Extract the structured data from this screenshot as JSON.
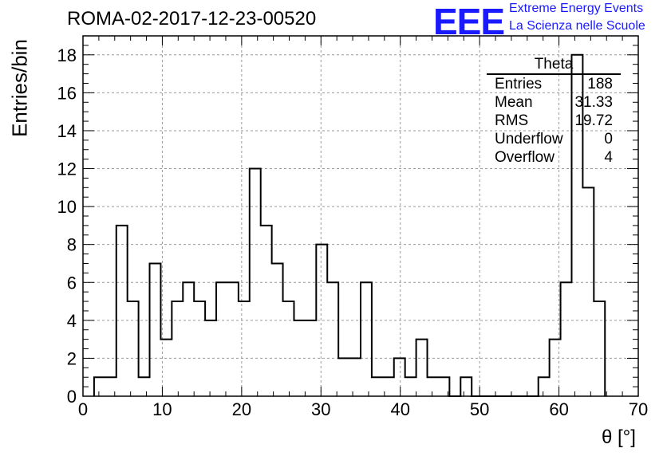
{
  "title": "ROMA-02-2017-12-23-00520",
  "logo": {
    "mark": "EEE",
    "line1": "Extreme Energy Events",
    "line2": "La Scienza nelle Scuole",
    "color": "#1a1aff"
  },
  "stats": {
    "title": "Theta",
    "rows": [
      {
        "label": "Entries",
        "value": "188"
      },
      {
        "label": "Mean",
        "value": "31.33"
      },
      {
        "label": "RMS",
        "value": "19.72"
      },
      {
        "label": "Underflow",
        "value": "0"
      },
      {
        "label": "Overflow",
        "value": "4"
      }
    ]
  },
  "chart_data": {
    "type": "bar",
    "title": "ROMA-02-2017-12-23-00520",
    "xlabel": "θ [°]",
    "ylabel": "Entries/bin",
    "xlim": [
      0,
      70
    ],
    "ylim": [
      0,
      19
    ],
    "xticks": [
      0,
      10,
      20,
      30,
      40,
      50,
      60,
      70
    ],
    "yticks": [
      0,
      2,
      4,
      6,
      8,
      10,
      12,
      14,
      16,
      18
    ],
    "grid": true,
    "bin_width": 1.4,
    "bin_lows": [
      1.4,
      2.8,
      4.2,
      5.6,
      7.0,
      8.4,
      9.8,
      11.2,
      12.6,
      14.0,
      15.4,
      16.8,
      18.2,
      19.6,
      21.0,
      22.4,
      23.8,
      25.2,
      26.6,
      28.0,
      29.4,
      30.8,
      32.2,
      33.6,
      35.0,
      36.4,
      37.8,
      39.2,
      40.6,
      42.0,
      43.4,
      44.8,
      46.2,
      47.6,
      49.0,
      50.4,
      51.8,
      53.2,
      54.6,
      56.0,
      57.4,
      58.8,
      60.2,
      61.6,
      63.0,
      64.4
    ],
    "values": [
      1,
      1,
      9,
      5,
      1,
      7,
      3,
      5,
      6,
      5,
      4,
      6,
      6,
      5,
      12,
      9,
      7,
      5,
      4,
      4,
      8,
      6,
      2,
      2,
      6,
      1,
      1,
      2,
      1,
      3,
      1,
      1,
      0,
      1,
      0,
      0,
      0,
      0,
      0,
      0,
      1,
      3,
      6,
      18,
      11,
      5
    ],
    "line_color": "#000000",
    "grid_color": "#9a9a9a"
  }
}
